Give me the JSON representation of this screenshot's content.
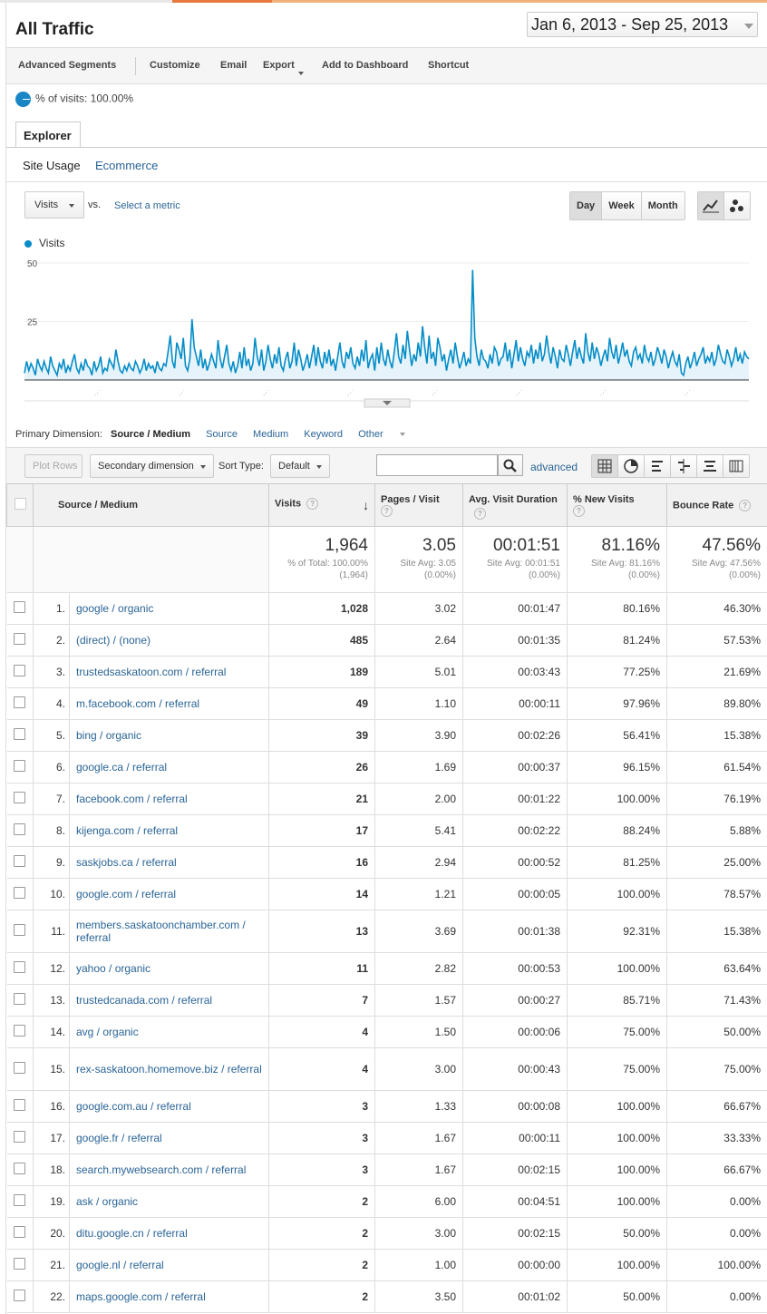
{
  "title": "All Traffic",
  "date_range": "Jan 6, 2013 - Sep 25, 2013",
  "toolbar": {
    "advanced_segments": "Advanced Segments",
    "customize": "Customize",
    "email": "Email",
    "export": "Export",
    "add_to_dashboard": "Add to Dashboard",
    "shortcut": "Shortcut"
  },
  "segment_label": "% of visits: 100.00%",
  "tabs": {
    "explorer": "Explorer",
    "site_usage": "Site Usage",
    "ecommerce": "Ecommerce"
  },
  "metric_select": "Visits",
  "vs": "vs.",
  "select_metric": "Select a metric",
  "granularity": [
    "Day",
    "Week",
    "Month"
  ],
  "icons": {
    "line_chart": "line-chart-icon",
    "motion_chart": "motion-chart-icon",
    "search": "search-icon"
  },
  "chart_data": {
    "type": "area",
    "series": [
      {
        "name": "Visits",
        "color": "#058dc7"
      }
    ],
    "yticks": [
      25,
      50
    ],
    "ylim": [
      0,
      50
    ],
    "values": [
      3,
      8,
      4,
      7,
      5,
      2,
      9,
      6,
      4,
      8,
      5,
      3,
      10,
      6,
      4,
      2,
      7,
      5,
      9,
      3,
      6,
      4,
      8,
      11,
      5,
      3,
      7,
      4,
      9,
      6,
      5,
      2,
      8,
      4,
      6,
      10,
      3,
      5,
      4,
      9,
      7,
      5,
      13,
      8,
      4,
      3,
      6,
      4,
      7,
      5,
      4,
      8,
      6,
      3,
      5,
      9,
      4,
      7,
      5,
      6,
      3,
      8,
      5,
      4,
      7,
      6,
      12,
      19,
      8,
      5,
      16,
      13,
      9,
      18,
      6,
      4,
      9,
      26,
      14,
      10,
      6,
      13,
      5,
      9,
      4,
      7,
      11,
      8,
      5,
      17,
      9,
      5,
      10,
      15,
      7,
      4,
      8,
      3,
      6,
      12,
      5,
      14,
      6,
      9,
      4,
      7,
      18,
      10,
      6,
      13,
      4,
      8,
      15,
      9,
      5,
      11,
      7,
      14,
      6,
      4,
      9,
      12,
      5,
      8,
      16,
      6,
      13,
      9,
      4,
      7,
      11,
      5,
      10,
      15,
      6,
      14,
      8,
      5,
      12,
      7,
      13,
      6,
      9,
      4,
      10,
      16,
      8,
      5,
      12,
      9,
      14,
      7,
      5,
      10,
      6,
      13,
      8,
      17,
      5,
      9,
      11,
      4,
      14,
      7,
      16,
      9,
      6,
      13,
      8,
      5,
      12,
      20,
      10,
      7,
      15,
      9,
      21,
      13,
      6,
      11,
      8,
      16,
      10,
      23,
      14,
      7,
      19,
      9,
      12,
      6,
      18,
      14,
      8,
      11,
      4,
      9,
      13,
      7,
      16,
      10,
      5,
      8,
      12,
      6,
      9,
      7,
      47,
      18,
      10,
      6,
      13,
      9,
      8,
      5,
      11,
      7,
      14,
      12,
      6,
      9,
      10,
      16,
      8,
      13,
      5,
      11,
      17,
      8,
      14,
      9,
      6,
      12,
      10,
      15,
      7,
      13,
      9,
      16,
      8,
      11,
      19,
      12,
      7,
      14,
      10,
      5,
      13,
      9,
      8,
      15,
      11,
      6,
      12,
      17,
      9,
      14,
      10,
      7,
      20,
      12,
      8,
      16,
      9,
      14,
      11,
      6,
      10,
      13,
      8,
      18,
      12,
      9,
      15,
      7,
      11,
      16,
      10,
      13,
      8,
      6,
      12,
      14,
      9,
      11,
      7,
      15,
      10,
      8,
      12,
      6,
      9,
      14,
      11,
      7,
      13,
      10,
      5,
      9,
      12,
      8,
      6,
      11,
      3,
      2,
      7,
      10,
      5,
      8,
      12,
      6,
      9,
      11,
      14,
      7,
      10,
      8,
      12,
      6,
      9,
      15,
      11,
      8,
      7,
      13,
      10,
      6,
      9,
      14,
      8,
      11,
      7,
      12,
      10,
      9
    ]
  },
  "dimensions": {
    "label": "Primary Dimension:",
    "active": "Source / Medium",
    "options": [
      "Source",
      "Medium",
      "Keyword",
      "Other"
    ]
  },
  "controls": {
    "plot_rows": "Plot Rows",
    "secondary": "Secondary dimension",
    "sort_type_label": "Sort Type:",
    "sort_type": "Default",
    "advanced": "advanced"
  },
  "table": {
    "headers": [
      "Source / Medium",
      "Visits",
      "Pages / Visit",
      "Avg. Visit Duration",
      "% New Visits",
      "Bounce Rate"
    ],
    "totals": {
      "visits": "1,964",
      "visits_sub": "% of Total: 100.00% (1,964)",
      "pages": "3.05",
      "pages_sub": "Site Avg: 3.05 (0.00%)",
      "duration": "00:01:51",
      "duration_sub": "Site Avg: 00:01:51 (0.00%)",
      "new": "81.16%",
      "new_sub": "Site Avg: 81.16% (0.00%)",
      "bounce": "47.56%",
      "bounce_sub": "Site Avg: 47.56% (0.00%)"
    },
    "rows": [
      [
        "1.",
        "google / organic",
        "1,028",
        "3.02",
        "00:01:47",
        "80.16%",
        "46.30%"
      ],
      [
        "2.",
        "(direct) / (none)",
        "485",
        "2.64",
        "00:01:35",
        "81.24%",
        "57.53%"
      ],
      [
        "3.",
        "trustedsaskatoon.com / referral",
        "189",
        "5.01",
        "00:03:43",
        "77.25%",
        "21.69%"
      ],
      [
        "4.",
        "m.facebook.com / referral",
        "49",
        "1.10",
        "00:00:11",
        "97.96%",
        "89.80%"
      ],
      [
        "5.",
        "bing / organic",
        "39",
        "3.90",
        "00:02:26",
        "56.41%",
        "15.38%"
      ],
      [
        "6.",
        "google.ca / referral",
        "26",
        "1.69",
        "00:00:37",
        "96.15%",
        "61.54%"
      ],
      [
        "7.",
        "facebook.com / referral",
        "21",
        "2.00",
        "00:01:22",
        "100.00%",
        "76.19%"
      ],
      [
        "8.",
        "kijenga.com / referral",
        "17",
        "5.41",
        "00:02:22",
        "88.24%",
        "5.88%"
      ],
      [
        "9.",
        "saskjobs.ca / referral",
        "16",
        "2.94",
        "00:00:52",
        "81.25%",
        "25.00%"
      ],
      [
        "10.",
        "google.com / referral",
        "14",
        "1.21",
        "00:00:05",
        "100.00%",
        "78.57%"
      ],
      [
        "11.",
        "members.saskatoonchamber.com / referral",
        "13",
        "3.69",
        "00:01:38",
        "92.31%",
        "15.38%"
      ],
      [
        "12.",
        "yahoo / organic",
        "11",
        "2.82",
        "00:00:53",
        "100.00%",
        "63.64%"
      ],
      [
        "13.",
        "trustedcanada.com / referral",
        "7",
        "1.57",
        "00:00:27",
        "85.71%",
        "71.43%"
      ],
      [
        "14.",
        "avg / organic",
        "4",
        "1.50",
        "00:00:06",
        "75.00%",
        "50.00%"
      ],
      [
        "15.",
        "rex-saskatoon.homemove.biz / referral",
        "4",
        "3.00",
        "00:00:43",
        "75.00%",
        "75.00%"
      ],
      [
        "16.",
        "google.com.au / referral",
        "3",
        "1.33",
        "00:00:08",
        "100.00%",
        "66.67%"
      ],
      [
        "17.",
        "google.fr / referral",
        "3",
        "1.67",
        "00:00:11",
        "100.00%",
        "33.33%"
      ],
      [
        "18.",
        "search.mywebsearch.com / referral",
        "3",
        "1.67",
        "00:02:15",
        "100.00%",
        "66.67%"
      ],
      [
        "19.",
        "ask / organic",
        "2",
        "6.00",
        "00:04:51",
        "100.00%",
        "0.00%"
      ],
      [
        "20.",
        "ditu.google.cn / referral",
        "2",
        "3.00",
        "00:02:15",
        "50.00%",
        "0.00%"
      ],
      [
        "21.",
        "google.nl / referral",
        "2",
        "1.00",
        "00:00:00",
        "100.00%",
        "100.00%"
      ],
      [
        "22.",
        "maps.google.com / referral",
        "2",
        "3.50",
        "00:01:02",
        "50.00%",
        "0.00%"
      ]
    ]
  }
}
